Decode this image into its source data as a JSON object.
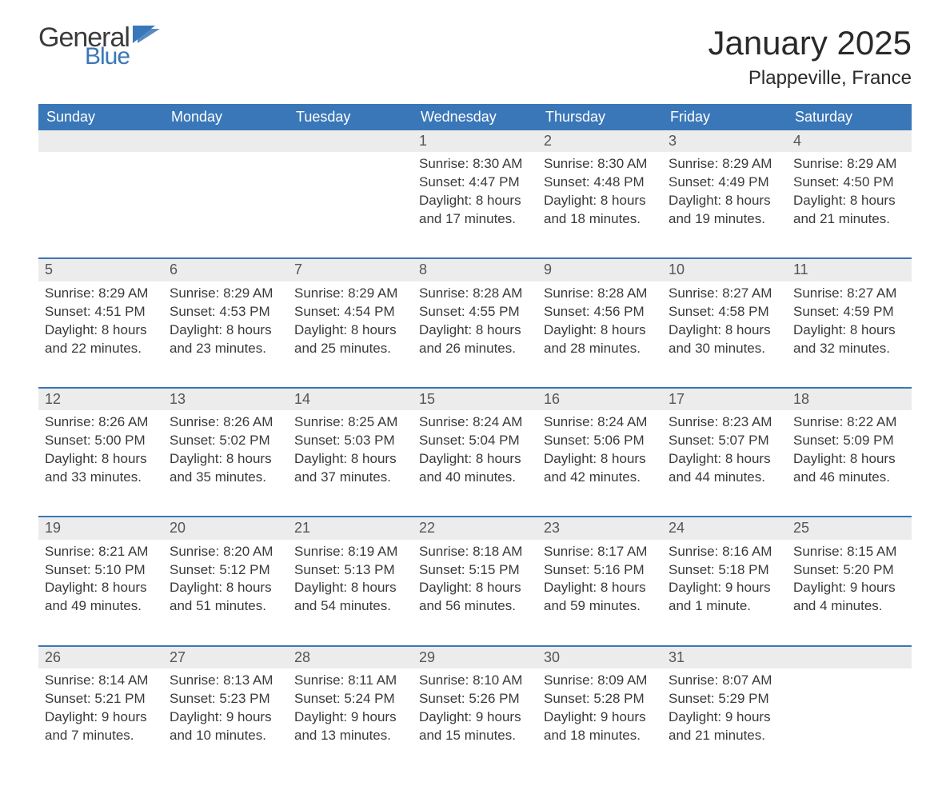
{
  "logo": {
    "word1": "General",
    "word2": "Blue",
    "text_color": "#3b3b3b",
    "accent_color": "#3a77b8"
  },
  "title": "January 2025",
  "subtitle": "Plappeville, France",
  "colors": {
    "header_bg": "#3a77b8",
    "header_text": "#ffffff",
    "daynum_bg": "#ececec",
    "daynum_text": "#555555",
    "rule_color": "#3a77b8",
    "body_text": "#3a3a3a",
    "page_bg": "#ffffff"
  },
  "day_headers": [
    "Sunday",
    "Monday",
    "Tuesday",
    "Wednesday",
    "Thursday",
    "Friday",
    "Saturday"
  ],
  "weeks": [
    [
      null,
      null,
      null,
      {
        "n": "1",
        "sunrise": "Sunrise: 8:30 AM",
        "sunset": "Sunset: 4:47 PM",
        "d1": "Daylight: 8 hours",
        "d2": "and 17 minutes."
      },
      {
        "n": "2",
        "sunrise": "Sunrise: 8:30 AM",
        "sunset": "Sunset: 4:48 PM",
        "d1": "Daylight: 8 hours",
        "d2": "and 18 minutes."
      },
      {
        "n": "3",
        "sunrise": "Sunrise: 8:29 AM",
        "sunset": "Sunset: 4:49 PM",
        "d1": "Daylight: 8 hours",
        "d2": "and 19 minutes."
      },
      {
        "n": "4",
        "sunrise": "Sunrise: 8:29 AM",
        "sunset": "Sunset: 4:50 PM",
        "d1": "Daylight: 8 hours",
        "d2": "and 21 minutes."
      }
    ],
    [
      {
        "n": "5",
        "sunrise": "Sunrise: 8:29 AM",
        "sunset": "Sunset: 4:51 PM",
        "d1": "Daylight: 8 hours",
        "d2": "and 22 minutes."
      },
      {
        "n": "6",
        "sunrise": "Sunrise: 8:29 AM",
        "sunset": "Sunset: 4:53 PM",
        "d1": "Daylight: 8 hours",
        "d2": "and 23 minutes."
      },
      {
        "n": "7",
        "sunrise": "Sunrise: 8:29 AM",
        "sunset": "Sunset: 4:54 PM",
        "d1": "Daylight: 8 hours",
        "d2": "and 25 minutes."
      },
      {
        "n": "8",
        "sunrise": "Sunrise: 8:28 AM",
        "sunset": "Sunset: 4:55 PM",
        "d1": "Daylight: 8 hours",
        "d2": "and 26 minutes."
      },
      {
        "n": "9",
        "sunrise": "Sunrise: 8:28 AM",
        "sunset": "Sunset: 4:56 PM",
        "d1": "Daylight: 8 hours",
        "d2": "and 28 minutes."
      },
      {
        "n": "10",
        "sunrise": "Sunrise: 8:27 AM",
        "sunset": "Sunset: 4:58 PM",
        "d1": "Daylight: 8 hours",
        "d2": "and 30 minutes."
      },
      {
        "n": "11",
        "sunrise": "Sunrise: 8:27 AM",
        "sunset": "Sunset: 4:59 PM",
        "d1": "Daylight: 8 hours",
        "d2": "and 32 minutes."
      }
    ],
    [
      {
        "n": "12",
        "sunrise": "Sunrise: 8:26 AM",
        "sunset": "Sunset: 5:00 PM",
        "d1": "Daylight: 8 hours",
        "d2": "and 33 minutes."
      },
      {
        "n": "13",
        "sunrise": "Sunrise: 8:26 AM",
        "sunset": "Sunset: 5:02 PM",
        "d1": "Daylight: 8 hours",
        "d2": "and 35 minutes."
      },
      {
        "n": "14",
        "sunrise": "Sunrise: 8:25 AM",
        "sunset": "Sunset: 5:03 PM",
        "d1": "Daylight: 8 hours",
        "d2": "and 37 minutes."
      },
      {
        "n": "15",
        "sunrise": "Sunrise: 8:24 AM",
        "sunset": "Sunset: 5:04 PM",
        "d1": "Daylight: 8 hours",
        "d2": "and 40 minutes."
      },
      {
        "n": "16",
        "sunrise": "Sunrise: 8:24 AM",
        "sunset": "Sunset: 5:06 PM",
        "d1": "Daylight: 8 hours",
        "d2": "and 42 minutes."
      },
      {
        "n": "17",
        "sunrise": "Sunrise: 8:23 AM",
        "sunset": "Sunset: 5:07 PM",
        "d1": "Daylight: 8 hours",
        "d2": "and 44 minutes."
      },
      {
        "n": "18",
        "sunrise": "Sunrise: 8:22 AM",
        "sunset": "Sunset: 5:09 PM",
        "d1": "Daylight: 8 hours",
        "d2": "and 46 minutes."
      }
    ],
    [
      {
        "n": "19",
        "sunrise": "Sunrise: 8:21 AM",
        "sunset": "Sunset: 5:10 PM",
        "d1": "Daylight: 8 hours",
        "d2": "and 49 minutes."
      },
      {
        "n": "20",
        "sunrise": "Sunrise: 8:20 AM",
        "sunset": "Sunset: 5:12 PM",
        "d1": "Daylight: 8 hours",
        "d2": "and 51 minutes."
      },
      {
        "n": "21",
        "sunrise": "Sunrise: 8:19 AM",
        "sunset": "Sunset: 5:13 PM",
        "d1": "Daylight: 8 hours",
        "d2": "and 54 minutes."
      },
      {
        "n": "22",
        "sunrise": "Sunrise: 8:18 AM",
        "sunset": "Sunset: 5:15 PM",
        "d1": "Daylight: 8 hours",
        "d2": "and 56 minutes."
      },
      {
        "n": "23",
        "sunrise": "Sunrise: 8:17 AM",
        "sunset": "Sunset: 5:16 PM",
        "d1": "Daylight: 8 hours",
        "d2": "and 59 minutes."
      },
      {
        "n": "24",
        "sunrise": "Sunrise: 8:16 AM",
        "sunset": "Sunset: 5:18 PM",
        "d1": "Daylight: 9 hours",
        "d2": "and 1 minute."
      },
      {
        "n": "25",
        "sunrise": "Sunrise: 8:15 AM",
        "sunset": "Sunset: 5:20 PM",
        "d1": "Daylight: 9 hours",
        "d2": "and 4 minutes."
      }
    ],
    [
      {
        "n": "26",
        "sunrise": "Sunrise: 8:14 AM",
        "sunset": "Sunset: 5:21 PM",
        "d1": "Daylight: 9 hours",
        "d2": "and 7 minutes."
      },
      {
        "n": "27",
        "sunrise": "Sunrise: 8:13 AM",
        "sunset": "Sunset: 5:23 PM",
        "d1": "Daylight: 9 hours",
        "d2": "and 10 minutes."
      },
      {
        "n": "28",
        "sunrise": "Sunrise: 8:11 AM",
        "sunset": "Sunset: 5:24 PM",
        "d1": "Daylight: 9 hours",
        "d2": "and 13 minutes."
      },
      {
        "n": "29",
        "sunrise": "Sunrise: 8:10 AM",
        "sunset": "Sunset: 5:26 PM",
        "d1": "Daylight: 9 hours",
        "d2": "and 15 minutes."
      },
      {
        "n": "30",
        "sunrise": "Sunrise: 8:09 AM",
        "sunset": "Sunset: 5:28 PM",
        "d1": "Daylight: 9 hours",
        "d2": "and 18 minutes."
      },
      {
        "n": "31",
        "sunrise": "Sunrise: 8:07 AM",
        "sunset": "Sunset: 5:29 PM",
        "d1": "Daylight: 9 hours",
        "d2": "and 21 minutes."
      },
      null
    ]
  ]
}
